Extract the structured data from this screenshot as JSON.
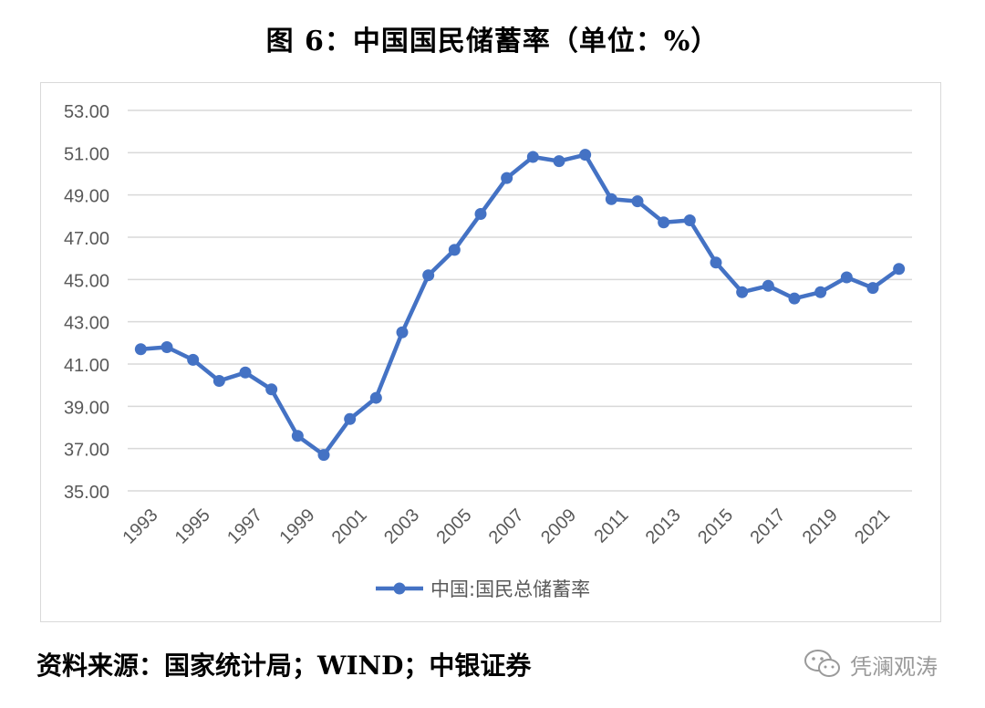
{
  "title": "图 6：中国国民储蓄率（单位：%）",
  "source": "资料来源：国家统计局；WIND；中银证券",
  "watermark": {
    "text": "凭澜观涛",
    "icon": "wechat-icon"
  },
  "colors": {
    "series": "#4472C4",
    "grid": "#d9d9d9",
    "axis_text": "#595959"
  },
  "chart_data": {
    "type": "line",
    "x": [
      1993,
      1994,
      1995,
      1996,
      1997,
      1998,
      1999,
      2000,
      2001,
      2002,
      2003,
      2004,
      2005,
      2006,
      2007,
      2008,
      2009,
      2010,
      2011,
      2012,
      2013,
      2014,
      2015,
      2016,
      2017,
      2018,
      2019,
      2020,
      2021,
      2022
    ],
    "x_tick_labels": [
      "1993",
      "1995",
      "1997",
      "1999",
      "2001",
      "2003",
      "2005",
      "2007",
      "2009",
      "2011",
      "2013",
      "2015",
      "2017",
      "2019",
      "2021"
    ],
    "series": [
      {
        "name": "中国:国民总储蓄率",
        "values": [
          41.7,
          41.8,
          41.2,
          40.2,
          40.6,
          39.8,
          37.6,
          36.7,
          38.4,
          39.4,
          42.5,
          45.2,
          46.4,
          48.1,
          49.8,
          50.8,
          50.6,
          50.9,
          48.8,
          48.7,
          47.7,
          47.8,
          45.8,
          44.4,
          44.7,
          44.1,
          44.4,
          45.1,
          44.6,
          45.5
        ]
      }
    ],
    "y_ticks": [
      "35.00",
      "37.00",
      "39.00",
      "41.00",
      "43.00",
      "45.00",
      "47.00",
      "49.00",
      "51.00",
      "53.00"
    ],
    "ylim": [
      35,
      53
    ],
    "grid": true,
    "legend": "bottom"
  }
}
